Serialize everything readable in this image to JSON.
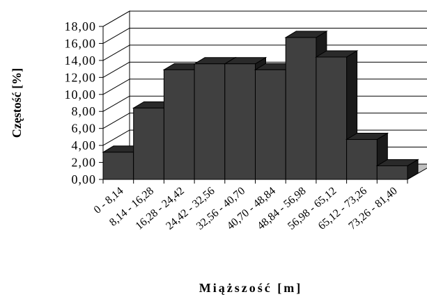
{
  "chart_data": {
    "type": "bar",
    "style": "3d",
    "title": "",
    "ylabel": "Częstość [%]",
    "xlabel": "Miąższość [m]",
    "ylim": [
      0,
      18
    ],
    "yticks": [
      "0,00",
      "2,00",
      "4,00",
      "6,00",
      "8,00",
      "10,00",
      "12,00",
      "14,00",
      "16,00",
      "18,00"
    ],
    "grid": true,
    "categories": [
      "0 - 8,14",
      "8,14 - 16,28",
      "16,28 - 24,42",
      "24,42 - 32,56",
      "32,56 - 40,70",
      "40,70 - 48,84",
      "48,84 - 56,98",
      "56,98 - 65,12",
      "65,12 - 73,26",
      "73,26 - 81,40"
    ],
    "values": [
      3.2,
      8.4,
      12.9,
      13.6,
      13.6,
      12.9,
      16.7,
      14.4,
      4.7,
      1.6
    ],
    "bar_color": "#404040"
  }
}
